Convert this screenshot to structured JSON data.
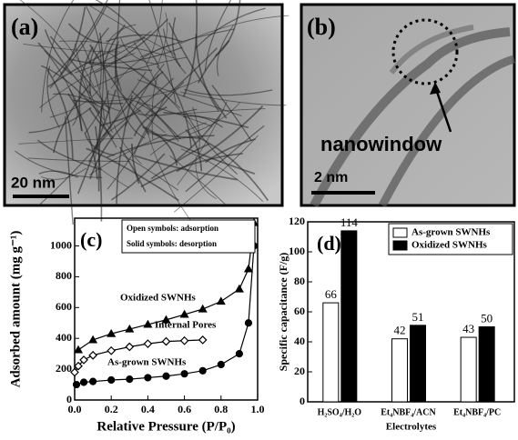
{
  "images": [
    {
      "label": "(a)",
      "scale_bar": "20 nm"
    },
    {
      "label": "(b)",
      "annotation": "nanowindow",
      "scale_bar": "2 nm"
    }
  ],
  "chart_data": [
    {
      "type": "scatter",
      "panel_label": "(c)",
      "x_label": "Relative Pressure (P/P₀)",
      "y_label": "Adsorbed amount (mg g⁻¹)",
      "xlim": [
        0,
        1
      ],
      "xticks": [
        {
          "value": 0,
          "label": "0.0"
        },
        0.2,
        0.4,
        0.6,
        0.8,
        {
          "value": 1,
          "label": "1.0"
        }
      ],
      "ylim": [
        0,
        1180
      ],
      "yticks": [
        0,
        200,
        400,
        600,
        800,
        1000
      ],
      "notes": [
        "Open symbols: adsorption",
        "Solid symbols: desorption"
      ],
      "annotations": [
        "Oxidized SWNHs",
        "Internal Pores",
        "As-grown SWNHs"
      ],
      "series": [
        {
          "color": "#000000",
          "marker": "triangle",
          "x": [
            0.02,
            0.1,
            0.2,
            0.3,
            0.4,
            0.5,
            0.6,
            0.7,
            0.8,
            0.9,
            0.95,
            0.98
          ],
          "values": [
            325,
            390,
            430,
            460,
            490,
            520,
            555,
            590,
            640,
            720,
            850,
            1150
          ]
        },
        {
          "color": "#000000",
          "marker": "diamond",
          "x": [
            0.0,
            0.02,
            0.05,
            0.1,
            0.2,
            0.3,
            0.4,
            0.5,
            0.6,
            0.7
          ],
          "values": [
            180,
            220,
            260,
            290,
            320,
            345,
            365,
            380,
            385,
            390
          ]
        },
        {
          "color": "#000000",
          "marker": "circle",
          "x": [
            0.01,
            0.05,
            0.1,
            0.2,
            0.3,
            0.4,
            0.5,
            0.6,
            0.7,
            0.8,
            0.9,
            0.95,
            0.98
          ],
          "values": [
            100,
            115,
            120,
            130,
            135,
            145,
            155,
            170,
            190,
            230,
            300,
            500,
            1000
          ]
        }
      ]
    },
    {
      "type": "bar",
      "panel_label": "(d)",
      "x_label": "Electrolytes",
      "y_label": "Specific capacitance (F/g)",
      "categories": [
        "H₂SO₄/H₂O",
        "Et₄NBF₄/ACN",
        "Et₄NBF₄/PC"
      ],
      "ylim": [
        0,
        120
      ],
      "yticks": [
        0,
        20,
        40,
        60,
        80,
        100,
        120
      ],
      "legend": "upper right",
      "series": [
        {
          "name": "As-grown SWNHs",
          "color": "#ffffff",
          "values": [
            66,
            42,
            43
          ]
        },
        {
          "name": "Oxidized SWNHs",
          "color": "#000000",
          "values": [
            114,
            51,
            50
          ]
        }
      ]
    }
  ]
}
